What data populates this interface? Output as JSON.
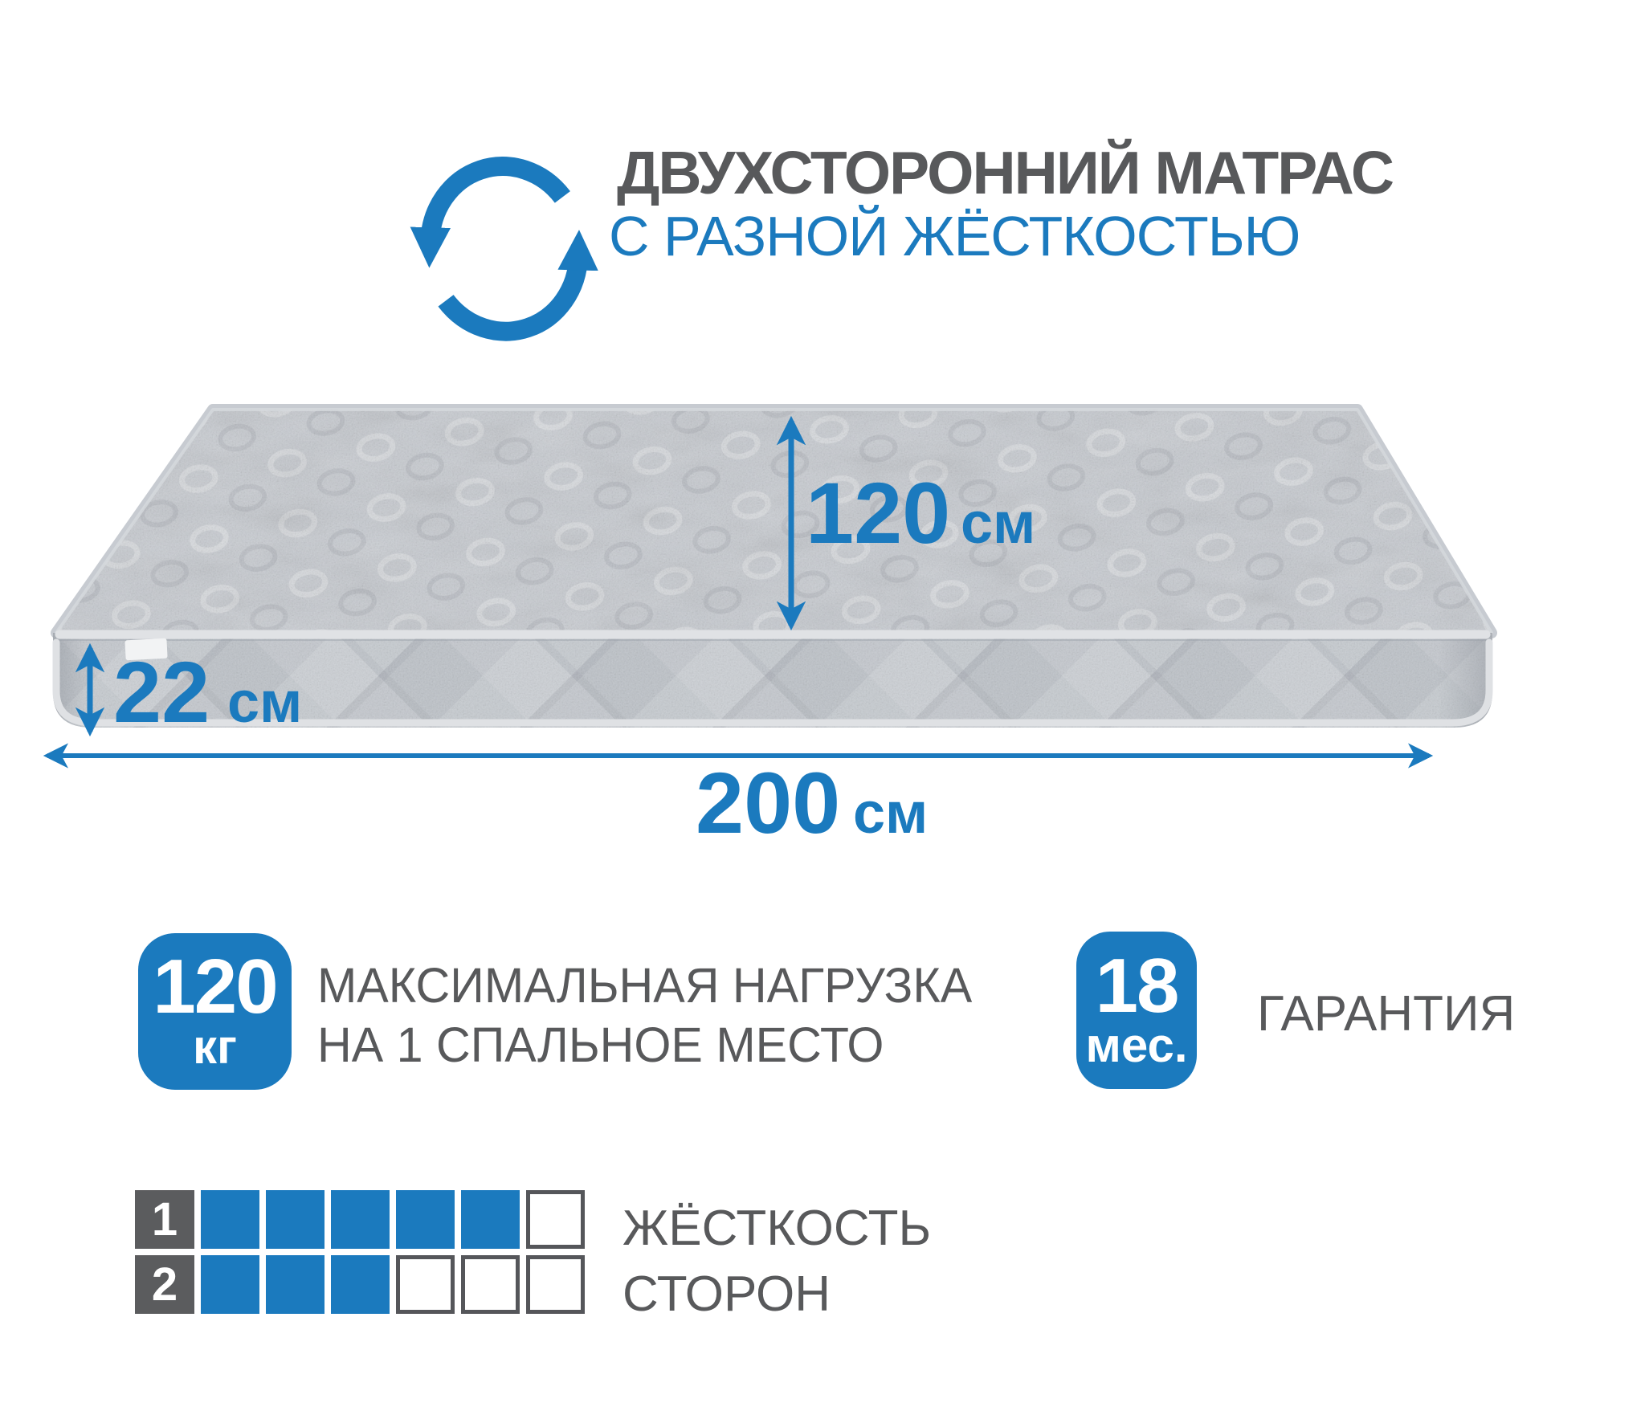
{
  "header": {
    "icon": "rotate-arrows",
    "title": "ДВУХСТОРОННИЙ МАТРАС",
    "subtitle": "С РАЗНОЙ ЖЁСТКОСТЬЮ"
  },
  "dimensions": {
    "width": {
      "value": "120",
      "unit": "см"
    },
    "height": {
      "value": "22",
      "unit": "см"
    },
    "length": {
      "value": "200",
      "unit": "см"
    }
  },
  "badges": {
    "max_load": {
      "value": "120",
      "unit": "кг",
      "label_line1": "МАКСИМАЛЬНАЯ НАГРУЗКА",
      "label_line2": "НА 1 СПАЛЬНОЕ МЕСТО"
    },
    "warranty": {
      "value": "18",
      "unit": "мес.",
      "label": "ГАРАНТИЯ"
    }
  },
  "firmness": {
    "label_line1": "ЖЁСТКОСТЬ",
    "label_line2": "СТОРОН",
    "scale_max": 6,
    "sides": [
      {
        "label": "1",
        "filled": 5
      },
      {
        "label": "2",
        "filled": 3
      }
    ]
  },
  "colors": {
    "accent_blue": "#1b7abe",
    "text_gray": "#58595b",
    "mattress_top": "#c7cbd1",
    "mattress_side": "#bdc2c8",
    "piping": "#e0e2e5"
  }
}
